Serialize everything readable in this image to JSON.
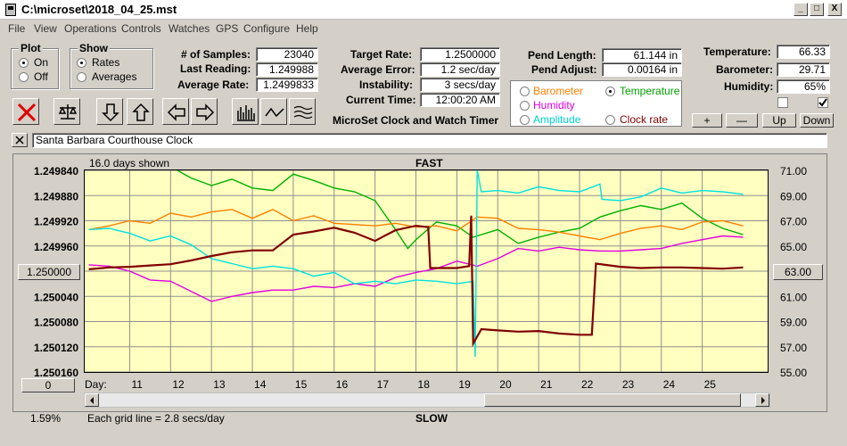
{
  "window": {
    "title": "C:\\microset\\2018_04_25.mst"
  },
  "menu": [
    "File",
    "View",
    "Operations",
    "Controls",
    "Watches",
    "GPS",
    "Configure",
    "Help"
  ],
  "plot_group": {
    "title": "Plot",
    "on": "On",
    "off": "Off",
    "selected": "On"
  },
  "show_group": {
    "title": "Show",
    "rates": "Rates",
    "averages": "Averages",
    "selected": "Rates"
  },
  "stats": {
    "samples_label": "# of Samples:",
    "samples": "23040",
    "last_label": "Last Reading:",
    "last": "1.249988",
    "avg_label": "Average Rate:",
    "avg": "1.2499833"
  },
  "rates": {
    "target_label": "Target Rate:",
    "target": "1.2500000",
    "error_label": "Average Error:",
    "error": "1.2 sec/day",
    "instab_label": "Instability:",
    "instab": "3 secs/day",
    "time_label": "Current Time:",
    "time": "12:00:20 AM"
  },
  "pend": {
    "length_label": "Pend Length:",
    "length": "61.144 in",
    "adjust_label": "Pend Adjust:",
    "adjust": "0.00164 in"
  },
  "env": {
    "temp_label": "Temperature:",
    "temp": "66.33",
    "baro_label": "Barometer:",
    "baro": "29.71",
    "hum_label": "Humidity:",
    "hum": "65%"
  },
  "sensor_options": {
    "barometer": "Barometer",
    "temperature": "Temperature",
    "humidity": "Humidity",
    "amplitude": "Amplitude",
    "clock_rate": "Clock rate",
    "selected": "Temperature"
  },
  "env_buttons": {
    "plus": "+",
    "minus": "—",
    "up": "Up",
    "down": "Down"
  },
  "program_title": "MicroSet Clock and Watch Timer",
  "clock_name": "Santa Barbara Courthouse Clock",
  "chart": {
    "days_shown": "16.0 days shown",
    "fast": "FAST",
    "slow": "SLOW",
    "grid_note": "Each grid line = 2.8 secs/day",
    "percent": "1.59%",
    "day_label": "Day:",
    "left_center_btn": "1.250000",
    "right_center_btn": "63.00",
    "bottom_btn": "0"
  },
  "colors": {
    "temperature": "#00b000",
    "barometer": "#ff8000",
    "humidity": "#e000e0",
    "amplitude": "#00e0e0",
    "clock_rate": "#800000",
    "plot_bg": "#ffffc0"
  },
  "chart_data": {
    "type": "line",
    "x_label": "Day:",
    "x_ticks": [
      11,
      12,
      13,
      14,
      15,
      16,
      17,
      18,
      19,
      20,
      21,
      22,
      23,
      24,
      25
    ],
    "xlim": [
      9.9,
      26.6
    ],
    "y_left_ticks": [
      "1.249840",
      "1.249880",
      "1.249920",
      "1.249960",
      "1.250000",
      "1.250040",
      "1.250080",
      "1.250120",
      "1.250160"
    ],
    "y_left_lim": [
      1.25016,
      1.24984
    ],
    "y_right_ticks": [
      "71.00",
      "69.00",
      "67.00",
      "65.00",
      "63.00",
      "61.00",
      "59.00",
      "57.00",
      "55.00"
    ],
    "y_right_lim": [
      55,
      71
    ],
    "series": [
      {
        "name": "Temperature",
        "axis": "right",
        "color": "#00b000",
        "points": [
          [
            10,
            71.5
          ],
          [
            11,
            71.5
          ],
          [
            12,
            71.3
          ],
          [
            12.5,
            70.4
          ],
          [
            13,
            69.8
          ],
          [
            13.5,
            70.3
          ],
          [
            14,
            69.6
          ],
          [
            14.5,
            69.4
          ],
          [
            15,
            70.7
          ],
          [
            15.5,
            70.2
          ],
          [
            16,
            69.6
          ],
          [
            16.5,
            69.3
          ],
          [
            17,
            68.6
          ],
          [
            17.5,
            66.3
          ],
          [
            17.8,
            64.8
          ],
          [
            18,
            65.5
          ],
          [
            18.5,
            66.9
          ],
          [
            19,
            66.6
          ],
          [
            19.4,
            65.7
          ],
          [
            20,
            66.3
          ],
          [
            20.5,
            65.2
          ],
          [
            21,
            65.7
          ],
          [
            21.5,
            66.1
          ],
          [
            22,
            66.4
          ],
          [
            22.5,
            67.3
          ],
          [
            23,
            67.8
          ],
          [
            23.5,
            68.2
          ],
          [
            24,
            67.9
          ],
          [
            24.5,
            68.4
          ],
          [
            25,
            67.2
          ],
          [
            25.5,
            66.4
          ],
          [
            26,
            65.9
          ]
        ]
      },
      {
        "name": "Barometer",
        "axis": "right",
        "color": "#ff8000",
        "points": [
          [
            10,
            66.3
          ],
          [
            10.5,
            66.6
          ],
          [
            11,
            67.0
          ],
          [
            11.5,
            66.8
          ],
          [
            12,
            67.6
          ],
          [
            12.5,
            67.3
          ],
          [
            13,
            67.7
          ],
          [
            13.5,
            67.9
          ],
          [
            14,
            67.2
          ],
          [
            14.5,
            67.9
          ],
          [
            15,
            67.0
          ],
          [
            15.5,
            67.4
          ],
          [
            16,
            66.8
          ],
          [
            16.5,
            66.7
          ],
          [
            17,
            66.6
          ],
          [
            17.5,
            66.8
          ],
          [
            18,
            66.5
          ],
          [
            18.5,
            66.6
          ],
          [
            19,
            66.2
          ],
          [
            19.5,
            67.3
          ],
          [
            20,
            67.2
          ],
          [
            20.5,
            66.4
          ],
          [
            21,
            66.3
          ],
          [
            21.5,
            66.1
          ],
          [
            22,
            65.8
          ],
          [
            22.5,
            65.5
          ],
          [
            23,
            66.0
          ],
          [
            23.5,
            66.4
          ],
          [
            24,
            66.6
          ],
          [
            24.5,
            66.3
          ],
          [
            25,
            66.9
          ],
          [
            25.5,
            67.0
          ],
          [
            26,
            66.6
          ]
        ]
      },
      {
        "name": "Humidity",
        "axis": "right",
        "color": "#e000e0",
        "points": [
          [
            10,
            63.5
          ],
          [
            10.5,
            63.4
          ],
          [
            11,
            63.0
          ],
          [
            11.5,
            62.3
          ],
          [
            12,
            62.2
          ],
          [
            12.5,
            61.4
          ],
          [
            13,
            60.6
          ],
          [
            13.5,
            61.0
          ],
          [
            14,
            61.3
          ],
          [
            14.5,
            61.5
          ],
          [
            15,
            61.5
          ],
          [
            15.5,
            61.8
          ],
          [
            16,
            61.7
          ],
          [
            16.5,
            62.0
          ],
          [
            17,
            61.8
          ],
          [
            17.5,
            62.5
          ],
          [
            18,
            62.9
          ],
          [
            18.5,
            63.2
          ],
          [
            19,
            63.8
          ],
          [
            19.5,
            63.4
          ],
          [
            20,
            64.0
          ],
          [
            20.5,
            64.8
          ],
          [
            21,
            64.6
          ],
          [
            21.5,
            64.9
          ],
          [
            22,
            64.7
          ],
          [
            22.5,
            64.6
          ],
          [
            23,
            64.6
          ],
          [
            23.5,
            64.7
          ],
          [
            24,
            64.8
          ],
          [
            24.5,
            65.2
          ],
          [
            25,
            65.5
          ],
          [
            25.5,
            65.8
          ],
          [
            26,
            65.7
          ]
        ]
      },
      {
        "name": "Amplitude",
        "axis": "right",
        "color": "#00e0e0",
        "points": [
          [
            10,
            66.3
          ],
          [
            10.5,
            66.4
          ],
          [
            11,
            66.0
          ],
          [
            11.5,
            65.4
          ],
          [
            12,
            65.8
          ],
          [
            12.5,
            65.1
          ],
          [
            13,
            64.0
          ],
          [
            13.5,
            63.6
          ],
          [
            14,
            63.2
          ],
          [
            14.5,
            63.4
          ],
          [
            15,
            63.2
          ],
          [
            15.5,
            62.6
          ],
          [
            16,
            62.9
          ],
          [
            16.5,
            62.0
          ],
          [
            17,
            62.2
          ],
          [
            17.5,
            62.0
          ],
          [
            18,
            62.3
          ],
          [
            18.5,
            62.2
          ],
          [
            19,
            62.0
          ],
          [
            19.4,
            62.2
          ],
          [
            19.45,
            56.2
          ],
          [
            19.5,
            71.0
          ],
          [
            19.6,
            69.3
          ],
          [
            20,
            69.4
          ],
          [
            20.5,
            69.2
          ],
          [
            21,
            69.7
          ],
          [
            21.5,
            69.4
          ],
          [
            22,
            69.3
          ],
          [
            22.5,
            69.9
          ],
          [
            22.55,
            68.7
          ],
          [
            23,
            68.6
          ],
          [
            23.5,
            68.9
          ],
          [
            24,
            69.6
          ],
          [
            24.5,
            69.2
          ],
          [
            25,
            69.4
          ],
          [
            25.5,
            69.3
          ],
          [
            26,
            69.1
          ]
        ]
      },
      {
        "name": "Clock rate",
        "axis": "left",
        "color": "#800000",
        "points": [
          [
            10,
            1.249997
          ],
          [
            10.5,
            1.249994
          ],
          [
            11,
            1.249993
          ],
          [
            11.5,
            1.249991
          ],
          [
            12,
            1.249989
          ],
          [
            12.5,
            1.249983
          ],
          [
            13,
            1.249976
          ],
          [
            13.5,
            1.24997
          ],
          [
            14,
            1.249967
          ],
          [
            14.5,
            1.249967
          ],
          [
            15,
            1.249942
          ],
          [
            15.5,
            1.249937
          ],
          [
            16,
            1.249931
          ],
          [
            16.5,
            1.249939
          ],
          [
            17,
            1.249952
          ],
          [
            17.2,
            1.249945
          ],
          [
            17.5,
            1.249935
          ],
          [
            18,
            1.249928
          ],
          [
            18.3,
            1.24993
          ],
          [
            18.35,
            1.249995
          ],
          [
            19,
            1.249995
          ],
          [
            19.3,
            1.249992
          ],
          [
            19.35,
            1.249912
          ],
          [
            19.4,
            1.250115
          ],
          [
            19.6,
            1.250092
          ],
          [
            20,
            1.250094
          ],
          [
            20.5,
            1.250096
          ],
          [
            21,
            1.250095
          ],
          [
            21.5,
            1.250099
          ],
          [
            22,
            1.250101
          ],
          [
            22.3,
            1.250101
          ],
          [
            22.4,
            1.249988
          ],
          [
            23,
            1.249993
          ],
          [
            23.5,
            1.249995
          ],
          [
            24,
            1.249994
          ],
          [
            24.5,
            1.249994
          ],
          [
            25,
            1.249995
          ],
          [
            25.5,
            1.249996
          ],
          [
            26,
            1.249994
          ]
        ]
      }
    ]
  }
}
